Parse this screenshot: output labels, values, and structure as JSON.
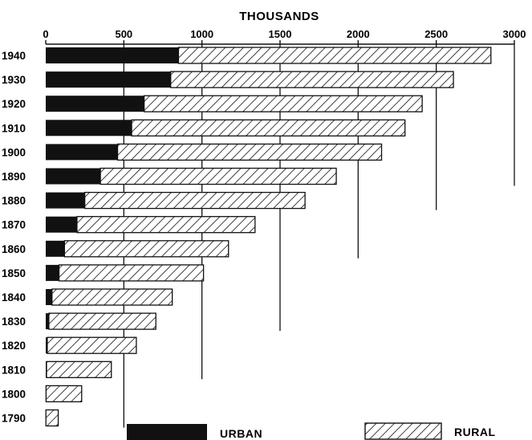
{
  "chart_data": {
    "type": "bar",
    "stacked": true,
    "orientation": "horizontal",
    "title": "THOUSANDS",
    "xlim": [
      0,
      3000
    ],
    "x_ticks": [
      0,
      500,
      1000,
      1500,
      2000,
      2500,
      3000
    ],
    "x_tick_labels": [
      "0",
      "500",
      "1000",
      "1500",
      "2000",
      "2500",
      "3000"
    ],
    "categories": [
      "1940",
      "1930",
      "1920",
      "1910",
      "1900",
      "1890",
      "1880",
      "1870",
      "1860",
      "1850",
      "1840",
      "1830",
      "1820",
      "1810",
      "1800",
      "1790"
    ],
    "series": [
      {
        "name": "URBAN",
        "fill": "solid",
        "values": [
          850,
          800,
          630,
          550,
          460,
          350,
          250,
          200,
          120,
          85,
          40,
          20,
          10,
          5,
          2,
          1
        ]
      },
      {
        "name": "RURAL",
        "fill": "hatched",
        "values": [
          2000,
          1810,
          1780,
          1750,
          1690,
          1510,
          1410,
          1140,
          1050,
          925,
          770,
          685,
          570,
          415,
          228,
          79
        ]
      }
    ],
    "legend": {
      "position": "bottom"
    },
    "grid": false
  },
  "colors": {
    "ink": "#111111",
    "paper": "#ffffff"
  }
}
